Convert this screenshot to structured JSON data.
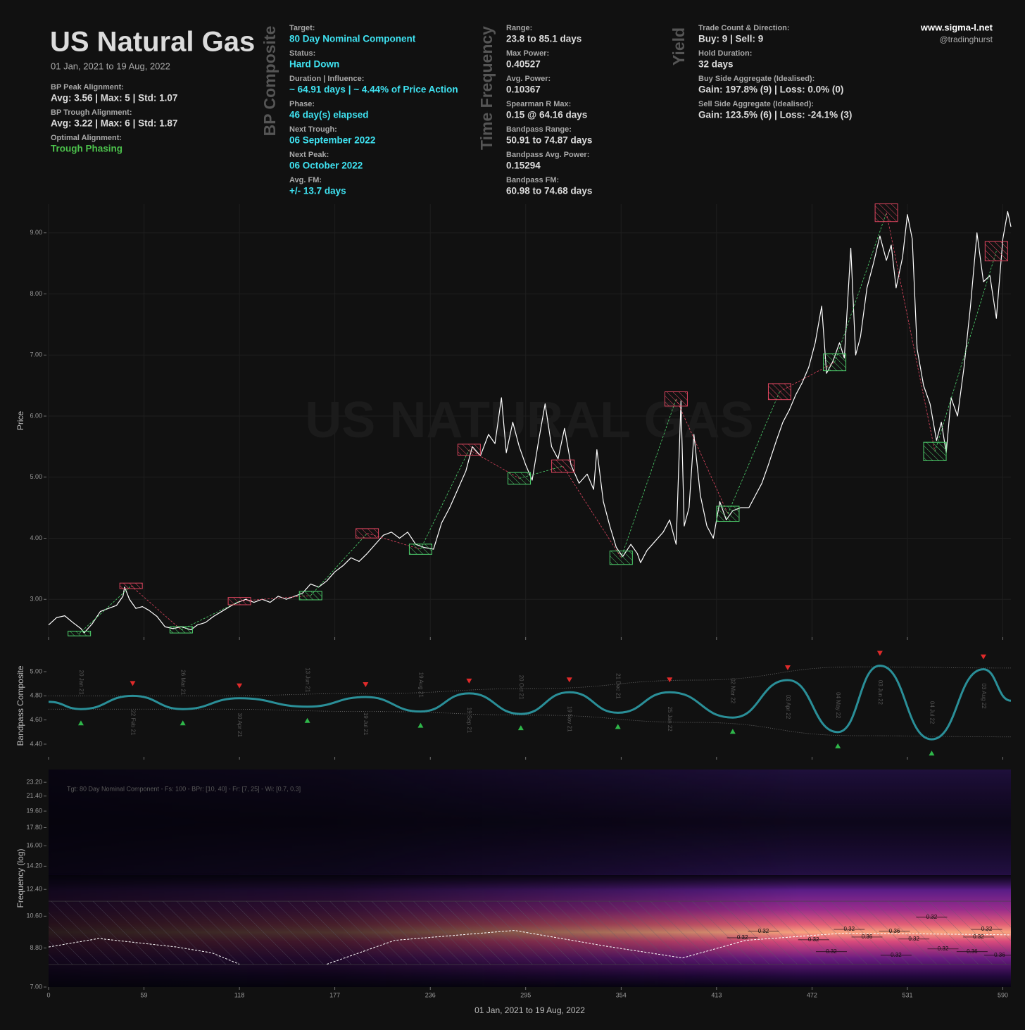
{
  "header": {
    "title": "US Natural Gas",
    "subtitle": "01 Jan, 2021 to 19 Aug, 2022",
    "site": "www.sigma-l.net",
    "handle": "@tradinghurst"
  },
  "summary": [
    {
      "label": "BP Peak Alignment:",
      "value": "Avg: 3.56 | Max: 5 | Std: 1.07"
    },
    {
      "label": "BP Trough Alignment:",
      "value": "Avg: 3.22 | Max: 6 | Std: 1.87"
    },
    {
      "label": "Optimal Alignment:",
      "value": "Trough Phasing",
      "color": "#4cc24c"
    }
  ],
  "columns": [
    {
      "heading": "BP Composite",
      "value_color": "#3fe3f2",
      "items": [
        {
          "label": "Target:",
          "value": "80 Day Nominal Component"
        },
        {
          "label": "Status:",
          "value": "Hard Down"
        },
        {
          "label": "Duration | Influence:",
          "value": "~ 64.91 days | ~ 4.44% of Price Action"
        },
        {
          "label": "Phase:",
          "value": "46 day(s) elapsed"
        },
        {
          "label": "Next Trough:",
          "value": "06 September 2022"
        },
        {
          "label": "Next Peak:",
          "value": "06 October 2022"
        },
        {
          "label": "Avg. FM:",
          "value": "+/- 13.7 days"
        }
      ]
    },
    {
      "heading": "Time Frequency",
      "value_color": "#dddddd",
      "items": [
        {
          "label": "Range:",
          "value": "23.8 to 85.1 days"
        },
        {
          "label": "Max Power:",
          "value": "0.40527"
        },
        {
          "label": "Avg. Power:",
          "value": "0.10367"
        },
        {
          "label": "Spearman R Max:",
          "value": "0.15 @ 64.16 days"
        },
        {
          "label": "Bandpass Range:",
          "value": "50.91 to 74.87 days"
        },
        {
          "label": "Bandpass Avg. Power:",
          "value": "0.15294"
        },
        {
          "label": "Bandpass FM:",
          "value": "60.98 to 74.68 days"
        }
      ]
    },
    {
      "heading": "Yield",
      "value_color": "#dddddd",
      "items": [
        {
          "label": "Trade Count & Direction:",
          "value": "Buy: 9 | Sell: 9"
        },
        {
          "label": "Hold Duration:",
          "value": "32 days"
        },
        {
          "label": "Buy Side Aggregate (Idealised):",
          "value": "Gain: 197.8% (9) | Loss: 0.0% (0)"
        },
        {
          "label": "Sell Side Aggregate (Idealised):",
          "value": "Gain: 123.5% (6) | Loss: -24.1% (3)"
        }
      ]
    }
  ],
  "chart_data": [
    {
      "type": "line",
      "ylabel": "Price",
      "watermark": "US NATURAL GAS",
      "grid": true,
      "xlim": [
        0,
        595
      ],
      "ylim": [
        2.38,
        9.47
      ],
      "yticks": [
        {
          "value": 3,
          "label": "3.00"
        },
        {
          "value": 4,
          "label": "4.00"
        },
        {
          "value": 5,
          "label": "5.00"
        },
        {
          "value": 6,
          "label": "6.00"
        },
        {
          "value": 7,
          "label": "7.00"
        },
        {
          "value": 8,
          "label": "8.00"
        },
        {
          "value": 9,
          "label": "9.00"
        }
      ],
      "series": [
        {
          "color": "#ffffff",
          "width": 1.2,
          "x": [
            0,
            5,
            10,
            15,
            20,
            22,
            27,
            32,
            37,
            42,
            46,
            47,
            50,
            54,
            58,
            62,
            67,
            72,
            77,
            82,
            88,
            92,
            97,
            102,
            107,
            112,
            117,
            122,
            127,
            132,
            137,
            142,
            147,
            152,
            157,
            162,
            167,
            172,
            177,
            182,
            187,
            192,
            197,
            202,
            207,
            212,
            217,
            222,
            227,
            232,
            238,
            243,
            248,
            253,
            258,
            262,
            267,
            272,
            276,
            280,
            283,
            287,
            291,
            295,
            299,
            303,
            307,
            311,
            315,
            319,
            323,
            328,
            333,
            337,
            339,
            343,
            347,
            351,
            355,
            360,
            364,
            366,
            370,
            375,
            380,
            384,
            388,
            391,
            393,
            396,
            399,
            403,
            407,
            411,
            415,
            419,
            423,
            428,
            433,
            437,
            441,
            445,
            450,
            454,
            458,
            462,
            466,
            470,
            474,
            478,
            481,
            485,
            489,
            492,
            496,
            499,
            502,
            506,
            510,
            514,
            518,
            521,
            524,
            528,
            531,
            534,
            537,
            541,
            545,
            549,
            552,
            555,
            558,
            562,
            566,
            570,
            574,
            578,
            582,
            586,
            590,
            593,
            595
          ],
          "values": [
            2.58,
            2.7,
            2.73,
            2.62,
            2.52,
            2.45,
            2.6,
            2.8,
            2.85,
            2.9,
            3.05,
            3.2,
            3.0,
            2.85,
            2.88,
            2.82,
            2.72,
            2.55,
            2.52,
            2.55,
            2.5,
            2.58,
            2.62,
            2.72,
            2.8,
            2.88,
            2.95,
            3.0,
            2.95,
            3.0,
            2.95,
            3.05,
            3.0,
            3.05,
            3.1,
            3.25,
            3.2,
            3.3,
            3.45,
            3.55,
            3.68,
            3.62,
            3.75,
            3.9,
            4.05,
            4.1,
            4.0,
            4.1,
            3.9,
            3.85,
            3.82,
            4.25,
            4.5,
            4.8,
            5.1,
            5.5,
            5.35,
            5.7,
            5.55,
            6.3,
            5.4,
            5.9,
            5.5,
            5.2,
            4.95,
            5.6,
            6.2,
            5.5,
            5.3,
            5.8,
            5.2,
            4.9,
            5.05,
            4.8,
            5.45,
            4.6,
            4.2,
            3.85,
            3.7,
            3.9,
            3.75,
            3.6,
            3.8,
            3.95,
            4.1,
            4.3,
            3.9,
            6.25,
            4.2,
            4.5,
            5.7,
            4.7,
            4.2,
            4.0,
            4.6,
            4.3,
            4.45,
            4.5,
            4.5,
            4.7,
            4.9,
            5.2,
            5.6,
            5.9,
            6.1,
            6.35,
            6.55,
            6.8,
            7.2,
            7.8,
            6.7,
            6.9,
            7.2,
            6.95,
            8.75,
            7.0,
            7.3,
            8.1,
            8.5,
            8.95,
            8.55,
            8.8,
            8.1,
            8.6,
            9.3,
            8.9,
            7.1,
            6.5,
            6.2,
            5.6,
            5.9,
            5.4,
            6.3,
            6.0,
            6.8,
            7.8,
            9.0,
            8.2,
            8.3,
            7.6,
            8.9,
            9.35,
            9.1
          ]
        }
      ],
      "buy_trades": {
        "color": "#4fd36e",
        "x": [
          19,
          82,
          162,
          230,
          291,
          354,
          420,
          486,
          548
        ],
        "values": [
          2.44,
          2.5,
          3.06,
          3.82,
          4.98,
          3.68,
          4.4,
          6.88,
          5.42
        ]
      },
      "sell_trades": {
        "color": "#e04660",
        "x": [
          51,
          118,
          197,
          260,
          318,
          388,
          452,
          518,
          586
        ],
        "values": [
          3.22,
          2.97,
          4.08,
          5.45,
          5.18,
          6.28,
          6.4,
          9.33,
          8.7
        ]
      }
    },
    {
      "type": "line",
      "ylabel": "Bandpass Composite",
      "smooth": true,
      "xlim": [
        0,
        595
      ],
      "ylim": [
        4.295,
        5.14
      ],
      "yticks": [
        {
          "value": 4.4,
          "label": "4.40"
        },
        {
          "value": 4.6,
          "label": "4.60"
        },
        {
          "value": 4.8,
          "label": "4.80"
        },
        {
          "value": 5,
          "label": "5.00"
        }
      ],
      "peak_color": "#e02a2a",
      "trough_color": "#2fb84a",
      "series": [
        {
          "color": "#777777",
          "width": 0.8,
          "dash": "1 2",
          "x": [
            0,
            100,
            200,
            300,
            400,
            500,
            595
          ],
          "values": [
            4.8,
            4.8,
            4.82,
            4.86,
            4.93,
            5.04,
            5.03
          ]
        },
        {
          "color": "#777777",
          "width": 0.8,
          "dash": "1 2",
          "x": [
            0,
            100,
            200,
            300,
            400,
            500,
            595
          ],
          "values": [
            4.69,
            4.69,
            4.67,
            4.64,
            4.58,
            4.47,
            4.46
          ]
        },
        {
          "color": "#2a8f98",
          "width": 3,
          "x": [
            0,
            20,
            52,
            83,
            118,
            160,
            196,
            230,
            260,
            292,
            322,
            352,
            384,
            423,
            457,
            488,
            514,
            546,
            578,
            595
          ],
          "values": [
            4.75,
            4.69,
            4.8,
            4.69,
            4.78,
            4.71,
            4.79,
            4.67,
            4.82,
            4.65,
            4.83,
            4.66,
            4.83,
            4.62,
            4.93,
            4.5,
            5.05,
            4.44,
            5.02,
            4.76
          ],
          "point_labels": [
            null,
            "20 Jan 21",
            "22 Feb 21",
            "26 Mar 21",
            "30 Apr 21",
            "13 Jun 21",
            "19 Jul 21",
            "19 Aug 21",
            "19 Sep 21",
            "20 Oct 21",
            "19 Nov 21",
            "21 Dec 21",
            "25 Jan 22",
            "02 Mar 22",
            "03 Apr 22",
            "04 May 22",
            "03 Jun 22",
            "04 Jul 22",
            "03 Aug 22",
            null
          ]
        }
      ]
    },
    {
      "type": "spectrogram",
      "ylabel": "Frequency (log)",
      "xlabel": "01 Jan, 2021 to 19 Aug, 2022",
      "note": "Tgt: 80 Day Nominal Component - Fs: 100 - BPr: [10, 40] - Fr: [7, 25] - Wi: [0.7, 0.3]",
      "log": true,
      "xlim": [
        0,
        595
      ],
      "ylim": [
        7,
        25
      ],
      "xticks": [
        0,
        59,
        118,
        177,
        236,
        295,
        354,
        413,
        472,
        531,
        590
      ],
      "yticks": [
        {
          "value": 7,
          "label": "7.00"
        },
        {
          "value": 8.8,
          "label": "8.80"
        },
        {
          "value": 10.6,
          "label": "10.60"
        },
        {
          "value": 12.4,
          "label": "12.40"
        },
        {
          "value": 14.2,
          "label": "14.20"
        },
        {
          "value": 16,
          "label": "16.00"
        },
        {
          "value": 17.8,
          "label": "17.80"
        },
        {
          "value": 19.6,
          "label": "19.60"
        },
        {
          "value": 21.4,
          "label": "21.40"
        },
        {
          "value": 23.2,
          "label": "23.20"
        }
      ],
      "band": [
        7.99,
        11.57
      ],
      "series": [
        {
          "color": "#ffffff",
          "width": 1,
          "dash": "3 2",
          "x": [
            0,
            31,
            79,
            101,
            118,
            145,
            172,
            214,
            288,
            344,
            392,
            431,
            492,
            595
          ],
          "values": [
            8.85,
            9.3,
            8.85,
            8.55,
            8.0,
            null,
            8.0,
            9.2,
            9.75,
            8.9,
            8.3,
            9.2,
            9.6,
            9.5
          ]
        }
      ],
      "contour_labels": {
        "x": [
          429,
          442,
          473,
          495,
          506,
          523,
          535,
          546,
          553,
          571,
          575,
          580,
          588,
          484,
          524
        ],
        "y": [
          9.34,
          9.7,
          9.23,
          9.81,
          9.38,
          9.7,
          9.27,
          10.53,
          8.75,
          8.61,
          9.38,
          9.81,
          8.43,
          8.61,
          8.43
        ],
        "values": [
          0.32,
          0.32,
          0.32,
          0.32,
          0.36,
          0.36,
          0.32,
          0.32,
          0.32,
          0.36,
          0.32,
          0.32,
          0.36,
          0.32,
          0.32
        ]
      }
    }
  ]
}
